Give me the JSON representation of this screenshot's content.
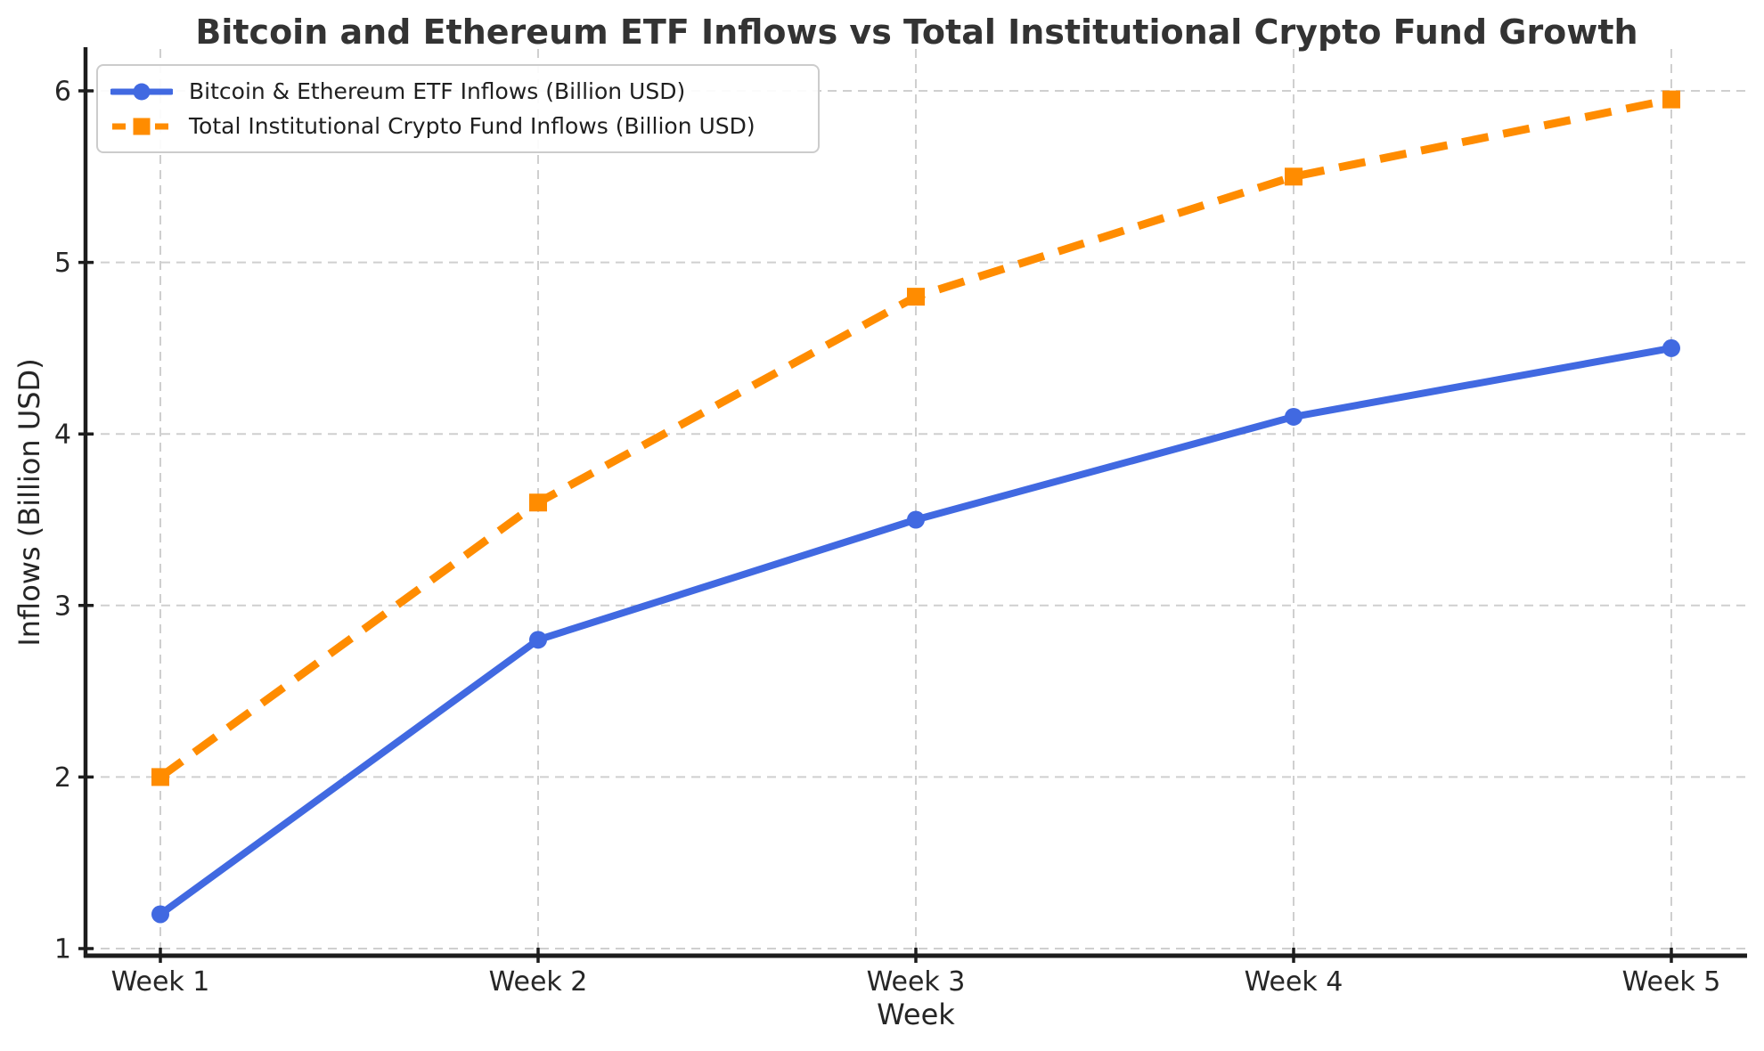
{
  "chart_data": {
    "type": "line",
    "title": "Bitcoin and Ethereum ETF Inflows vs Total Institutional Crypto Fund Growth",
    "xlabel": "Week",
    "ylabel": "Inflows (Billion USD)",
    "categories": [
      "Week 1",
      "Week 2",
      "Week 3",
      "Week 4",
      "Week 5"
    ],
    "series": [
      {
        "name": "Bitcoin & Ethereum ETF Inflows (Billion USD)",
        "values": [
          1.2,
          2.8,
          3.5,
          4.1,
          4.5
        ],
        "color": "#4169E1",
        "line_style": "solid",
        "marker": "circle"
      },
      {
        "name": "Total Institutional Crypto Fund Inflows (Billion USD)",
        "values": [
          2.0,
          3.6,
          4.8,
          5.5,
          5.95
        ],
        "color": "#FF8C00",
        "line_style": "dashed",
        "marker": "square"
      }
    ],
    "yticks": [
      1,
      2,
      3,
      4,
      5,
      6
    ],
    "ylim": [
      1,
      6.25
    ],
    "grid": "dashed",
    "legend_position": "upper-left",
    "colors": {
      "grid": "#cfcfcf",
      "spine": "#1d1d1d",
      "tick_text": "#262626",
      "title_text": "#333333",
      "background": "#ffffff"
    }
  }
}
